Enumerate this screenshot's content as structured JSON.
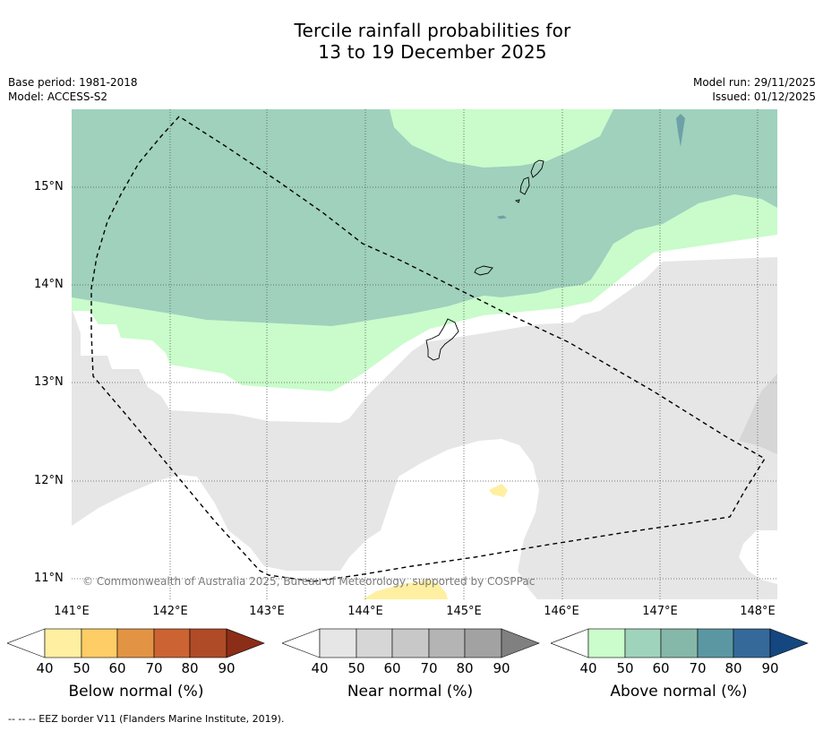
{
  "title_line1": "Tercile rainfall probabilities for",
  "title_line2": "13 to 19 December 2025",
  "base_period": "Base period: 1981-2018",
  "model": "Model: ACCESS-S2",
  "model_run": "Model run: 29/11/2025",
  "issued": "Issued: 01/12/2025",
  "copyright": "© Commonwealth of Australia 2025, Bureau of Meteorology, supported by COSPPac",
  "lat_labels": [
    "15°N",
    "14°N",
    "13°N",
    "12°N",
    "11°N"
  ],
  "lon_labels": [
    "141°E",
    "142°E",
    "143°E",
    "144°E",
    "145°E",
    "146°E",
    "147°E",
    "148°E"
  ],
  "legends": {
    "below": {
      "title": "Below normal (%)",
      "ticks": [
        "40",
        "50",
        "60",
        "70",
        "80",
        "90"
      ],
      "colors": [
        "#ffffff",
        "#ffefa1",
        "#fecd65",
        "#e29444",
        "#cc6332",
        "#b04b27",
        "#8c2d17"
      ]
    },
    "near": {
      "title": "Near normal (%)",
      "ticks": [
        "40",
        "50",
        "60",
        "70",
        "80",
        "90"
      ],
      "colors": [
        "#ffffff",
        "#e6e6e6",
        "#d6d6d6",
        "#c8c8c8",
        "#b4b4b4",
        "#a2a2a2",
        "#808080"
      ]
    },
    "above": {
      "title": "Above normal (%)",
      "ticks": [
        "40",
        "50",
        "60",
        "70",
        "80",
        "90"
      ],
      "colors": [
        "#ffffff",
        "#cbfccb",
        "#a0d3bb",
        "#86b8a9",
        "#5b97a3",
        "#356999",
        "#14477f"
      ]
    }
  },
  "map_colors": {
    "above_50": "#9fd1bc",
    "above_40": "#c9fcca",
    "near_40": "#e6e6e6",
    "near_50": "#d6d6d6",
    "below_40": "#ffefa1",
    "above_70": "#6ea0a8"
  },
  "footnote": "--  --  -- EEZ border V11 (Flanders Marine Institute, 2019)."
}
